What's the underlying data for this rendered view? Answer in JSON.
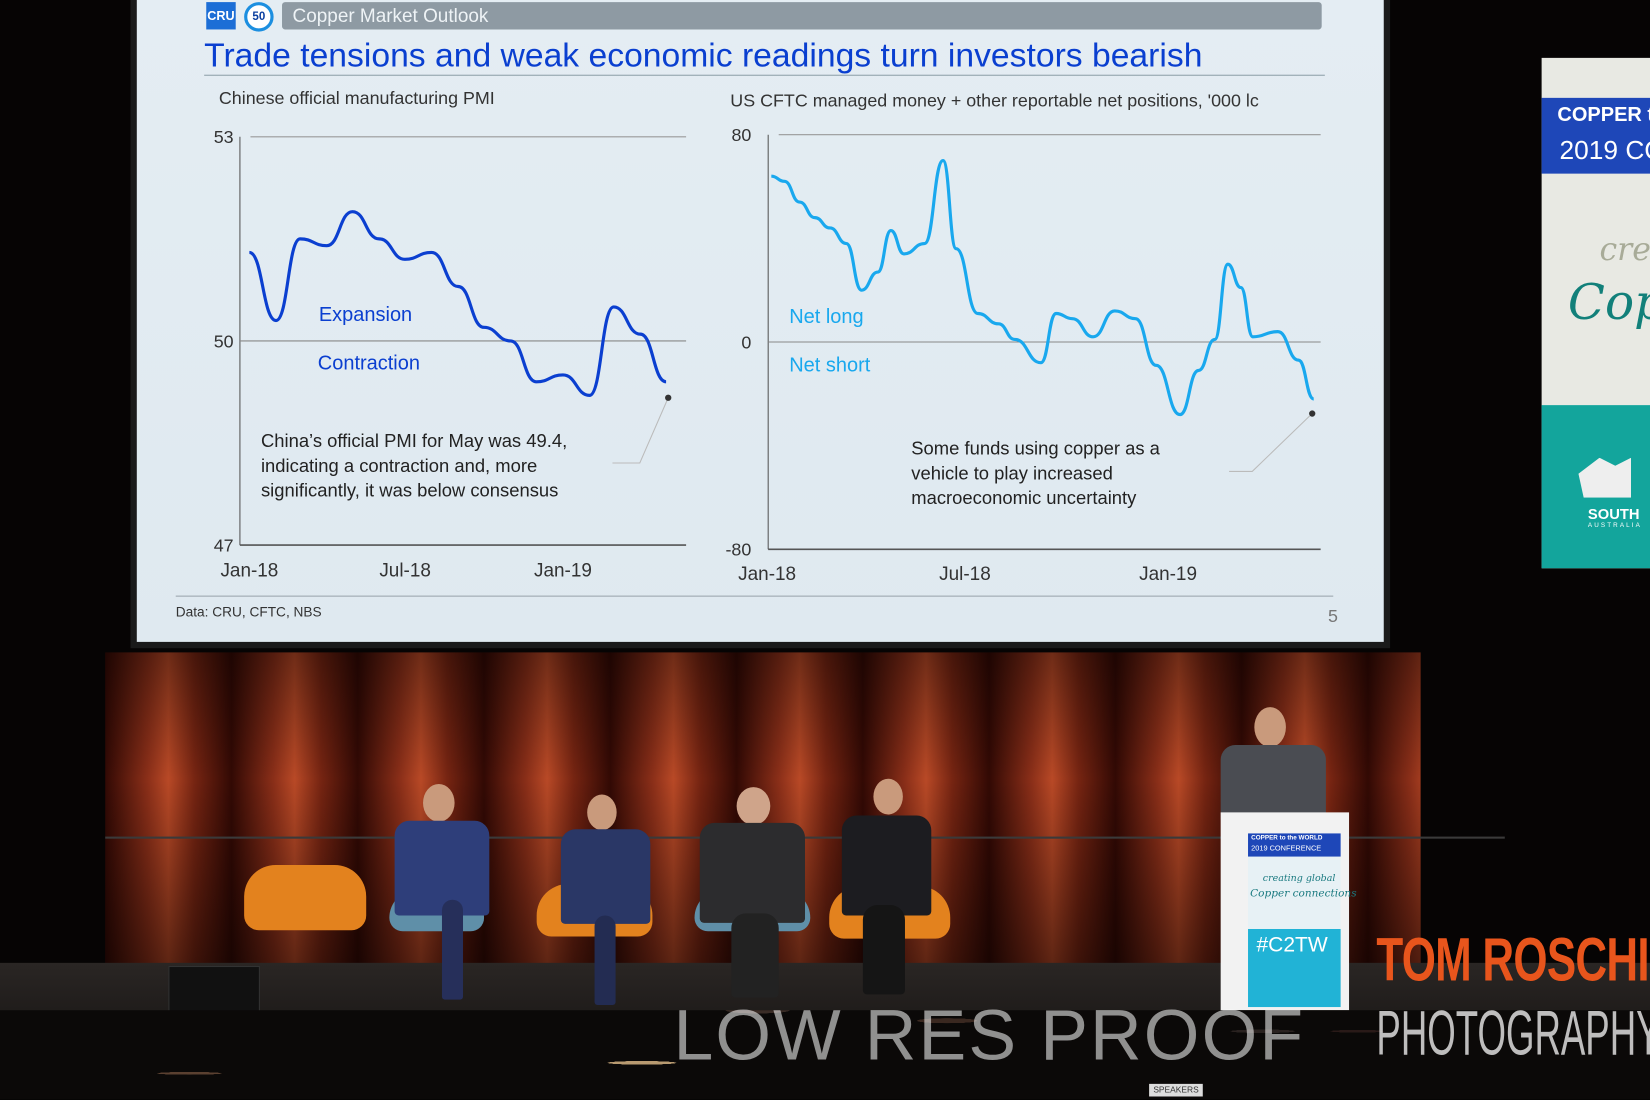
{
  "slide": {
    "logo_text": "CRU",
    "badge_text": "50",
    "header": "Copper Market Outlook",
    "title": "Trade tensions and weak economic readings turn investors bearish",
    "source": "Data: CRU, CFTC, NBS",
    "page_number": "5",
    "title_color": "#0a3fd0",
    "header_bar_color": "#8e9aa3"
  },
  "chart_data": [
    {
      "type": "line",
      "title": "Chinese official manufacturing PMI",
      "ylim": [
        47,
        53
      ],
      "yticks": [
        "53",
        "50",
        "47"
      ],
      "xticks": [
        "Jan-18",
        "Jul-18",
        "Jan-19"
      ],
      "reference_line": 50,
      "annotations": {
        "above": "Expansion",
        "below": "Contraction",
        "note": "China's official PMI for May was 49.4, indicating a contraction and, more significantly, it was below consensus"
      },
      "note_lines": [
        "China’s official PMI for May was 49.4,",
        "indicating a contraction and, more",
        "significantly, it was below consensus"
      ],
      "color": "#0b3fd0",
      "x": [
        "2018-01",
        "2018-02",
        "2018-03",
        "2018-04",
        "2018-05",
        "2018-06",
        "2018-07",
        "2018-08",
        "2018-09",
        "2018-10",
        "2018-11",
        "2018-12",
        "2019-01",
        "2019-02",
        "2019-03",
        "2019-04",
        "2019-05"
      ],
      "values": [
        51.3,
        50.3,
        51.5,
        51.4,
        51.9,
        51.5,
        51.2,
        51.3,
        50.8,
        50.2,
        50.0,
        49.4,
        49.5,
        49.2,
        50.5,
        50.1,
        49.4
      ]
    },
    {
      "type": "line",
      "title": "US CFTC managed money + other reportable net positions, '000 lc",
      "ylim": [
        -80,
        80
      ],
      "yticks": [
        "80",
        "0",
        "-80"
      ],
      "xticks": [
        "Jan-18",
        "Jul-18",
        "Jan-19"
      ],
      "reference_line": 0,
      "annotations": {
        "above": "Net long",
        "below": "Net short"
      },
      "note_lines": [
        "Some funds using copper as a",
        "vehicle to play increased",
        "macroeconomic uncertainty"
      ],
      "color": "#19a8ee",
      "x": [
        "2018-01-01",
        "2018-01-13",
        "2018-01-27",
        "2018-02-10",
        "2018-02-24",
        "2018-03-11",
        "2018-03-25",
        "2018-04-09",
        "2018-04-21",
        "2018-05-03",
        "2018-05-22",
        "2018-06-08",
        "2018-06-20",
        "2018-07-10",
        "2018-07-29",
        "2018-08-13",
        "2018-09-06",
        "2018-09-20",
        "2018-10-05",
        "2018-10-24",
        "2018-11-13",
        "2018-12-02",
        "2018-12-21",
        "2019-01-12",
        "2019-01-29",
        "2019-02-13",
        "2019-02-25",
        "2019-03-09",
        "2019-03-20",
        "2019-04-12",
        "2019-05-01",
        "2019-05-15"
      ],
      "values": [
        64,
        62,
        54,
        48,
        44,
        38,
        20,
        27,
        43,
        34,
        38,
        70,
        36,
        11,
        7,
        1,
        -8,
        11,
        9,
        2,
        12,
        9,
        -9,
        -28,
        -11,
        1,
        30,
        21,
        2,
        4,
        -7,
        -22
      ]
    }
  ],
  "podium": {
    "line1": "COPPER to the WORLD",
    "line2": "2019 CONFERENCE",
    "tag1": "creating global",
    "tag2": "Copper connections",
    "hashtag": "#C2TW"
  },
  "banner": {
    "line1": "COPPER t",
    "line2": "2019 CO",
    "script1": "crea",
    "script2": "Copp",
    "logo1": "SOUTH",
    "logo2": "AUSTRALIA"
  },
  "sign": "SPEAKERS",
  "watermark": {
    "proof": "LOW RES PROOF",
    "name": "TOM ROSCHI",
    "studio": "PHOTOGRAPHY"
  }
}
